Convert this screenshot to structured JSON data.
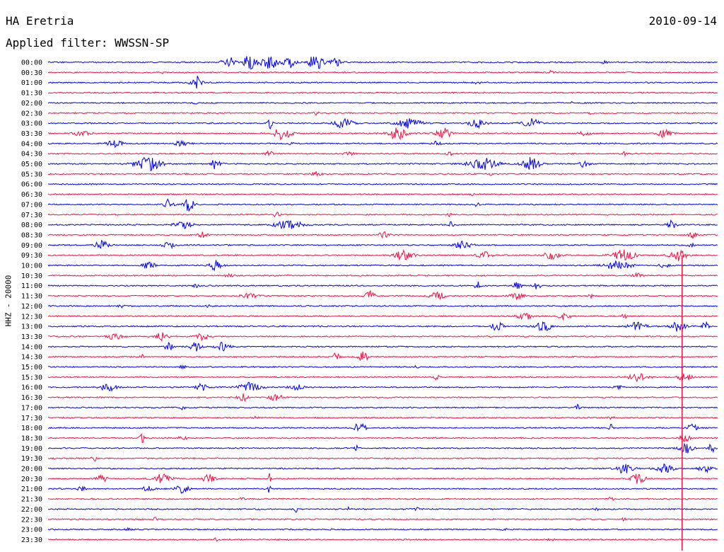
{
  "header": {
    "station": "HA Eretria",
    "date": "2010-09-14",
    "filter": "Applied filter: WWSSN-SP"
  },
  "chart_data": {
    "type": "line",
    "title": "HA Eretria",
    "ylabel": "HHZ - 20000",
    "colors": {
      "even_rows": "#0000ee",
      "odd_rows": "#ee1144"
    },
    "rows": [
      {
        "time": "00:00",
        "events": [
          [
            0.27,
            8,
            1.2
          ],
          [
            0.3,
            10,
            1.3
          ],
          [
            0.33,
            12,
            1.4
          ],
          [
            0.36,
            9,
            1.0
          ],
          [
            0.4,
            12,
            1.3
          ],
          [
            0.43,
            7,
            0.9
          ],
          [
            0.83,
            2,
            0.5
          ]
        ]
      },
      {
        "time": "00:30",
        "events": [
          [
            0.17,
            1.5,
            0.3
          ],
          [
            0.75,
            2,
            0.6
          ]
        ]
      },
      {
        "time": "01:00",
        "events": [
          [
            0.22,
            10,
            1.0
          ],
          [
            0.64,
            2,
            0.6
          ]
        ]
      },
      {
        "time": "01:30",
        "events": []
      },
      {
        "time": "02:00",
        "events": [
          [
            0.22,
            1.5,
            0.4
          ],
          [
            0.78,
            1.5,
            0.4
          ]
        ]
      },
      {
        "time": "02:30",
        "events": [
          [
            0.4,
            2,
            0.6
          ],
          [
            0.81,
            3,
            0.4
          ]
        ]
      },
      {
        "time": "03:00",
        "events": [
          [
            0.33,
            8,
            0.6
          ],
          [
            0.44,
            6,
            1.8
          ],
          [
            0.54,
            7,
            2.0
          ],
          [
            0.64,
            6,
            1.5
          ],
          [
            0.72,
            7,
            1.5
          ]
        ]
      },
      {
        "time": "03:30",
        "events": [
          [
            0.05,
            3,
            1.5
          ],
          [
            0.35,
            9,
            1.5
          ],
          [
            0.52,
            9,
            1.5
          ],
          [
            0.59,
            8,
            1.3
          ],
          [
            0.8,
            4,
            1.0
          ],
          [
            0.92,
            6,
            1.2
          ]
        ]
      },
      {
        "time": "04:00",
        "events": [
          [
            0.1,
            5,
            1.4
          ],
          [
            0.2,
            4,
            1.2
          ],
          [
            0.36,
            2,
            0.6
          ],
          [
            0.58,
            3,
            0.7
          ],
          [
            0.82,
            2,
            0.5
          ]
        ]
      },
      {
        "time": "04:30",
        "events": [
          [
            0.33,
            3,
            0.8
          ],
          [
            0.45,
            3,
            0.8
          ],
          [
            0.6,
            3,
            0.8
          ],
          [
            0.86,
            2,
            0.6
          ]
        ]
      },
      {
        "time": "05:00",
        "events": [
          [
            0.15,
            9,
            2.5
          ],
          [
            0.25,
            8,
            1.0
          ],
          [
            0.65,
            8,
            2.5
          ],
          [
            0.72,
            9,
            1.5
          ],
          [
            0.8,
            5,
            0.8
          ]
        ]
      },
      {
        "time": "05:30",
        "events": [
          [
            0.4,
            3,
            0.8
          ],
          [
            0.66,
            2,
            0.6
          ]
        ]
      },
      {
        "time": "06:00",
        "events": []
      },
      {
        "time": "06:30",
        "events": [
          [
            0.63,
            2,
            0.6
          ]
        ]
      },
      {
        "time": "07:00",
        "events": [
          [
            0.18,
            10,
            0.8
          ],
          [
            0.21,
            9,
            0.9
          ],
          [
            0.64,
            3,
            0.6
          ]
        ]
      },
      {
        "time": "07:30",
        "events": [
          [
            0.34,
            4,
            0.6
          ],
          [
            0.6,
            2,
            0.5
          ]
        ]
      },
      {
        "time": "08:00",
        "events": [
          [
            0.2,
            6,
            1.5
          ],
          [
            0.36,
            6,
            2.5
          ],
          [
            0.6,
            4,
            0.6
          ],
          [
            0.93,
            6,
            0.8
          ]
        ]
      },
      {
        "time": "08:30",
        "events": [
          [
            0.23,
            4,
            0.8
          ],
          [
            0.5,
            4,
            1.0
          ],
          [
            0.96,
            7,
            0.8
          ]
        ]
      },
      {
        "time": "09:00",
        "events": [
          [
            0.08,
            6,
            1.2
          ],
          [
            0.18,
            5,
            1.0
          ],
          [
            0.62,
            6,
            1.5
          ],
          [
            0.96,
            3,
            0.6
          ]
        ]
      },
      {
        "time": "09:30",
        "events": [
          [
            0.53,
            7,
            1.5
          ],
          [
            0.65,
            6,
            1.2
          ],
          [
            0.75,
            6,
            1.5
          ],
          [
            0.86,
            8,
            2.0
          ],
          [
            0.94,
            9,
            1.5
          ]
        ]
      },
      {
        "time": "10:00",
        "events": [
          [
            0.15,
            6,
            1.0
          ],
          [
            0.25,
            7,
            1.0
          ],
          [
            0.85,
            7,
            2.2
          ],
          [
            0.92,
            5,
            0.8
          ]
        ]
      },
      {
        "time": "10:30",
        "events": [
          [
            0.27,
            3,
            0.6
          ],
          [
            0.88,
            3,
            0.8
          ]
        ]
      },
      {
        "time": "11:00",
        "events": [
          [
            0.22,
            2,
            0.6
          ],
          [
            0.64,
            7,
            0.5
          ],
          [
            0.7,
            5,
            0.8
          ],
          [
            0.73,
            6,
            0.5
          ]
        ]
      },
      {
        "time": "11:30",
        "events": [
          [
            0.3,
            3,
            1.5
          ],
          [
            0.48,
            8,
            0.8
          ],
          [
            0.58,
            6,
            1.3
          ],
          [
            0.7,
            4,
            1.2
          ],
          [
            0.81,
            3,
            0.5
          ]
        ]
      },
      {
        "time": "12:00",
        "events": [
          [
            0.11,
            2,
            0.5
          ],
          [
            0.24,
            2,
            0.5
          ]
        ]
      },
      {
        "time": "12:30",
        "events": [
          [
            0.71,
            6,
            1.2
          ],
          [
            0.77,
            6,
            1.0
          ],
          [
            0.86,
            3,
            0.5
          ]
        ]
      },
      {
        "time": "13:00",
        "events": [
          [
            0.67,
            7,
            1.0
          ],
          [
            0.74,
            6,
            1.5
          ],
          [
            0.88,
            7,
            1.5
          ],
          [
            0.94,
            7,
            1.2
          ],
          [
            0.98,
            6,
            0.6
          ]
        ]
      },
      {
        "time": "13:30",
        "events": [
          [
            0.1,
            6,
            1.2
          ],
          [
            0.17,
            6,
            1.0
          ],
          [
            0.23,
            6,
            1.0
          ]
        ]
      },
      {
        "time": "14:00",
        "events": [
          [
            0.18,
            5,
            0.8
          ],
          [
            0.22,
            6,
            1.0
          ],
          [
            0.26,
            6,
            1.2
          ]
        ]
      },
      {
        "time": "14:30",
        "events": [
          [
            0.14,
            3,
            0.3
          ],
          [
            0.43,
            6,
            0.5
          ],
          [
            0.47,
            8,
            0.8
          ]
        ]
      },
      {
        "time": "15:00",
        "events": [
          [
            0.2,
            6,
            0.4
          ],
          [
            0.55,
            2,
            0.5
          ]
        ]
      },
      {
        "time": "15:30",
        "events": [
          [
            0.58,
            5,
            0.4
          ],
          [
            0.88,
            7,
            1.5
          ],
          [
            0.95,
            5,
            1.2
          ]
        ]
      },
      {
        "time": "16:00",
        "events": [
          [
            0.09,
            6,
            1.3
          ],
          [
            0.23,
            5,
            1.0
          ],
          [
            0.3,
            7,
            1.8
          ],
          [
            0.37,
            4,
            1.2
          ],
          [
            0.85,
            4,
            0.8
          ]
        ]
      },
      {
        "time": "16:30",
        "events": [
          [
            0.29,
            6,
            0.8
          ],
          [
            0.34,
            6,
            1.0
          ]
        ]
      },
      {
        "time": "17:00",
        "events": [
          [
            0.2,
            5,
            0.4
          ],
          [
            0.79,
            4,
            0.4
          ]
        ]
      },
      {
        "time": "17:30",
        "events": [
          [
            0.31,
            2,
            0.5
          ],
          [
            0.84,
            2,
            0.5
          ]
        ]
      },
      {
        "time": "18:00",
        "events": [
          [
            0.46,
            5,
            0.5
          ],
          [
            0.47,
            6,
            0.5
          ],
          [
            0.84,
            5,
            0.4
          ],
          [
            0.96,
            5,
            1.0
          ]
        ]
      },
      {
        "time": "18:30",
        "events": [
          [
            0.14,
            7,
            0.4
          ],
          [
            0.2,
            3,
            0.8
          ],
          [
            0.95,
            7,
            0.8
          ]
        ]
      },
      {
        "time": "19:00",
        "events": [
          [
            0.46,
            7,
            0.3
          ],
          [
            0.95,
            8,
            1.2
          ],
          [
            0.99,
            7,
            0.5
          ]
        ]
      },
      {
        "time": "19:30",
        "events": [
          [
            0.07,
            6,
            0.5
          ]
        ]
      },
      {
        "time": "20:00",
        "events": [
          [
            0.86,
            7,
            1.5
          ],
          [
            0.92,
            6,
            1.5
          ],
          [
            0.98,
            6,
            1.0
          ]
        ]
      },
      {
        "time": "20:30",
        "events": [
          [
            0.08,
            7,
            0.8
          ],
          [
            0.17,
            7,
            1.5
          ],
          [
            0.24,
            7,
            1.0
          ],
          [
            0.33,
            8,
            0.3
          ],
          [
            0.88,
            7,
            1.2
          ]
        ]
      },
      {
        "time": "21:00",
        "events": [
          [
            0.05,
            3,
            0.8
          ],
          [
            0.15,
            6,
            0.8
          ],
          [
            0.2,
            6,
            1.2
          ],
          [
            0.33,
            7,
            0.3
          ]
        ]
      },
      {
        "time": "21:30",
        "events": [
          [
            0.29,
            2,
            0.5
          ],
          [
            0.84,
            2,
            0.5
          ]
        ]
      },
      {
        "time": "22:00",
        "events": [
          [
            0.37,
            4,
            0.3
          ],
          [
            0.45,
            4,
            0.3
          ],
          [
            0.55,
            2,
            0.5
          ],
          [
            0.82,
            2,
            0.4
          ]
        ]
      },
      {
        "time": "22:30",
        "events": [
          [
            0.16,
            2,
            0.5
          ],
          [
            0.86,
            2,
            0.5
          ]
        ]
      },
      {
        "time": "23:00",
        "events": [
          [
            0.12,
            2,
            0.5
          ],
          [
            0.68,
            2,
            0.5
          ]
        ]
      },
      {
        "time": "23:30",
        "events": [
          [
            0.25,
            4,
            0.3
          ],
          [
            0.75,
            2,
            0.5
          ]
        ]
      }
    ],
    "vertical_marker": {
      "x_fraction": 0.946,
      "color": "#ee1144"
    }
  }
}
